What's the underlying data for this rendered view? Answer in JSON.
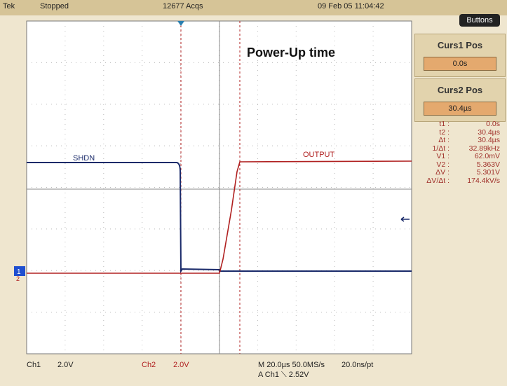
{
  "status_bar": {
    "brand": "Tek",
    "state": "Stopped",
    "acquisitions": "12677 Acqs",
    "datetime": "09 Feb 05 11:04:42",
    "button": "Buttons"
  },
  "screen": {
    "title": "Power-Up time",
    "trace_labels": [
      "SHDN",
      "OUTPUT"
    ],
    "channel_marker": "1",
    "channel_marker_2": "2"
  },
  "panel": {
    "cursor1": {
      "label": "Curs1 Pos",
      "value": "0.0s"
    },
    "cursor2": {
      "label": "Curs2 Pos",
      "value": "30.4µs"
    },
    "measurements": [
      [
        "t1 :",
        "0.0s"
      ],
      [
        "t2 :",
        "30.4µs"
      ],
      [
        "Δt :",
        "30.4µs"
      ],
      [
        "1/Δt :",
        "32.89kHz"
      ],
      [
        "V1 :",
        "62.0mV"
      ],
      [
        "V2 :",
        "5.363V"
      ],
      [
        "ΔV :",
        "5.301V"
      ],
      [
        "ΔV/Δt :",
        "174.4kV/s"
      ]
    ]
  },
  "footer": {
    "ch1": "Ch1",
    "ch1_scale": "2.0V",
    "ch2": "Ch2",
    "ch2_scale": "2.0V",
    "timebase": "M 20.0µs 50.0MS/s",
    "resolution": "20.0ns/pt",
    "trigger": "A  Ch1  ⟍  2.52V"
  }
}
